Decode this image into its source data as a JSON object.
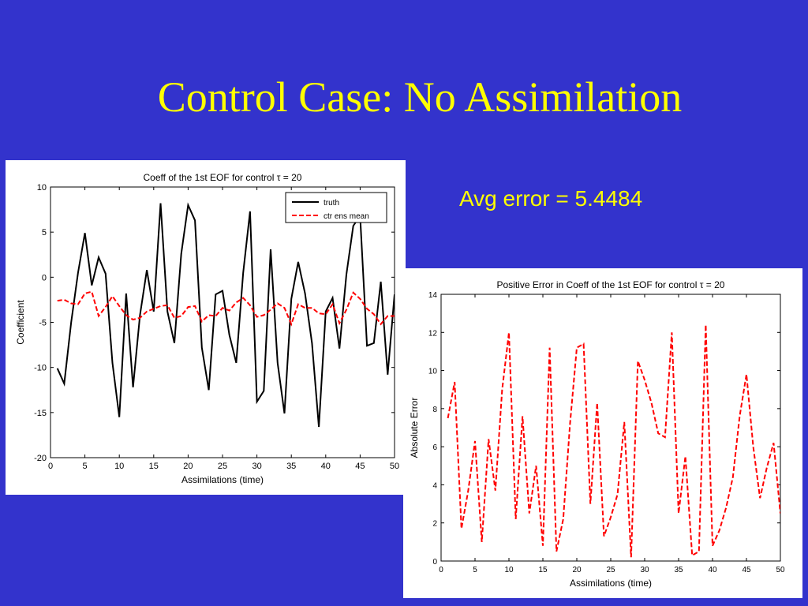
{
  "slide": {
    "title": "Control Case: No Assimilation",
    "avg_error_text": "Avg error = 5.4484"
  },
  "chart_data": [
    {
      "type": "line",
      "title": "Coeff of the 1st EOF for control τ = 20",
      "xlabel": "Assimilations (time)",
      "ylabel": "Coefficient",
      "xlim": [
        0,
        50
      ],
      "ylim": [
        -20,
        10
      ],
      "xticks": [
        0,
        5,
        10,
        15,
        20,
        25,
        30,
        35,
        40,
        45,
        50
      ],
      "yticks": [
        10,
        5,
        0,
        -5,
        -10,
        -15,
        -20
      ],
      "grid": false,
      "legend": "top-right",
      "x": [
        1,
        2,
        3,
        4,
        5,
        6,
        7,
        8,
        9,
        10,
        11,
        12,
        13,
        14,
        15,
        16,
        17,
        18,
        19,
        20,
        21,
        22,
        23,
        24,
        25,
        26,
        27,
        28,
        29,
        30,
        31,
        32,
        33,
        34,
        35,
        36,
        37,
        38,
        39,
        40,
        41,
        42,
        43,
        44,
        45,
        46,
        47,
        48,
        49,
        50
      ],
      "series": [
        {
          "name": "truth",
          "color": "#000000",
          "dash": "solid",
          "values": [
            -10.1,
            -11.8,
            -5.0,
            0.5,
            4.9,
            -0.9,
            2.2,
            0.4,
            -9.5,
            -15.5,
            -1.8,
            -12.2,
            -4.2,
            0.8,
            -3.8,
            8.2,
            -3.8,
            -7.3,
            2.6,
            8.0,
            6.3,
            -7.8,
            -12.5,
            -1.9,
            -1.5,
            -6.4,
            -9.5,
            0.5,
            7.3,
            -13.8,
            -12.6,
            3.1,
            -9.5,
            -15.1,
            -2.4,
            1.7,
            -1.8,
            -7.3,
            -16.6,
            -3.8,
            -2.3,
            -7.9,
            0.3,
            5.7,
            6.8,
            -7.6,
            -7.3,
            -0.5,
            -10.8,
            -1.9
          ]
        },
        {
          "name": "ctr ens mean",
          "color": "#ff0000",
          "dash": "dashed",
          "values": [
            -2.6,
            -2.5,
            -2.9,
            -3.0,
            -1.8,
            -1.6,
            -4.3,
            -3.3,
            -2.1,
            -3.2,
            -4.2,
            -4.7,
            -4.5,
            -3.8,
            -3.5,
            -3.2,
            -3.1,
            -4.5,
            -4.3,
            -3.3,
            -3.2,
            -4.9,
            -4.2,
            -4.3,
            -3.4,
            -3.7,
            -2.8,
            -2.3,
            -3.1,
            -4.4,
            -4.2,
            -3.6,
            -2.9,
            -3.4,
            -5.2,
            -3.0,
            -3.4,
            -3.4,
            -4.0,
            -4.1,
            -3.0,
            -5.1,
            -3.6,
            -1.7,
            -2.4,
            -3.5,
            -4.1,
            -5.2,
            -4.3,
            -4.3
          ]
        }
      ]
    },
    {
      "type": "line",
      "title": "Positive Error in Coeff of the 1st EOF for control τ = 20",
      "xlabel": "Assimilations (time)",
      "ylabel": "Absolute Error",
      "xlim": [
        0,
        50
      ],
      "ylim": [
        0,
        14
      ],
      "xticks": [
        0,
        5,
        10,
        15,
        20,
        25,
        30,
        35,
        40,
        45,
        50
      ],
      "yticks": [
        14,
        12,
        10,
        8,
        6,
        4,
        2,
        0
      ],
      "grid": false,
      "legend": "none",
      "x": [
        1,
        2,
        3,
        4,
        5,
        6,
        7,
        8,
        9,
        10,
        11,
        12,
        13,
        14,
        15,
        16,
        17,
        18,
        19,
        20,
        21,
        22,
        23,
        24,
        25,
        26,
        27,
        28,
        29,
        30,
        31,
        32,
        33,
        34,
        35,
        36,
        37,
        38,
        39,
        40,
        41,
        42,
        43,
        44,
        45,
        46,
        47,
        48,
        49,
        50
      ],
      "series": [
        {
          "color": "#ff0000",
          "dash": "dashed",
          "values": [
            7.5,
            9.4,
            1.7,
            3.7,
            6.3,
            1.0,
            6.4,
            3.7,
            9.0,
            12.0,
            2.2,
            7.6,
            2.5,
            5.0,
            0.8,
            11.2,
            0.5,
            2.2,
            7.2,
            11.2,
            11.4,
            3.0,
            8.3,
            1.3,
            2.3,
            3.5,
            7.3,
            0.2,
            10.5,
            9.5,
            8.3,
            6.7,
            6.5,
            12.0,
            2.5,
            5.5,
            0.3,
            0.5,
            12.4,
            0.8,
            1.6,
            2.8,
            4.4,
            7.6,
            9.8,
            6.0,
            3.3,
            4.9,
            6.2,
            2.5
          ]
        }
      ]
    }
  ]
}
